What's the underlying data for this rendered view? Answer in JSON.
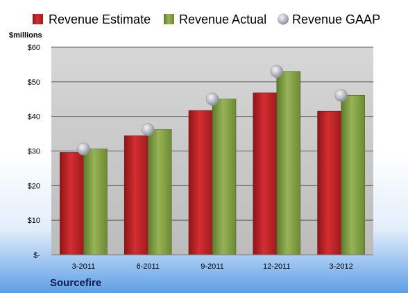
{
  "colors": {
    "estimate": "#c8262a",
    "actual": "#8aa64a",
    "gaap": "#b9bdc3",
    "plot_top": "#dadada",
    "plot_bottom": "#bdbdbd"
  },
  "chart_data": {
    "type": "bar",
    "unit_label": "$millions",
    "company": "Sourcefire",
    "categories": [
      "3-2011",
      "6-2011",
      "9-2011",
      "12-2011",
      "3-2012"
    ],
    "series": [
      {
        "name": "Revenue Estimate",
        "kind": "bar",
        "values": [
          29.6,
          34.4,
          41.7,
          46.8,
          41.5
        ]
      },
      {
        "name": "Revenue Actual",
        "kind": "bar",
        "values": [
          30.6,
          36.2,
          45.0,
          53.0,
          46.1
        ]
      },
      {
        "name": "Revenue GAAP",
        "kind": "marker",
        "values": [
          30.6,
          36.2,
          45.0,
          53.0,
          46.1
        ]
      }
    ],
    "ylim": [
      0,
      60
    ],
    "yticks": [
      0,
      10,
      20,
      30,
      40,
      50,
      60
    ],
    "ytick_labels": [
      "$-",
      "$10",
      "$20",
      "$30",
      "$40",
      "$50",
      "$60"
    ],
    "grid": true,
    "legend_position": "top"
  }
}
